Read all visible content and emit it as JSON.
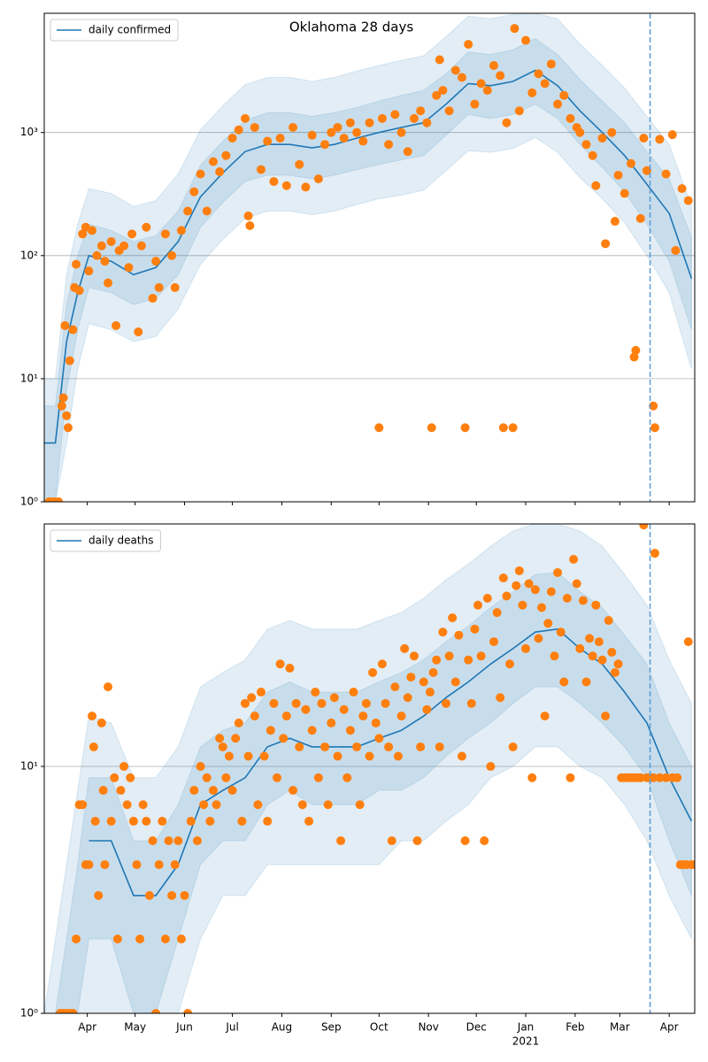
{
  "chart_data": [
    {
      "type": "line",
      "title": "Oklahoma 28 days",
      "log": true,
      "grid": true,
      "legend": "upper left",
      "x": [
        0,
        7,
        14,
        21,
        28,
        42,
        56,
        70,
        84,
        98,
        112,
        126,
        140,
        154,
        168,
        182,
        196,
        210,
        224,
        238,
        252,
        266,
        280,
        294,
        308,
        322,
        336,
        350,
        364,
        378,
        392,
        406
      ],
      "xlim": [
        0,
        408
      ],
      "ylim": [
        1,
        9300
      ],
      "yticks": [
        {
          "value": 1,
          "label": "10⁰"
        },
        {
          "value": 10,
          "label": "10¹"
        },
        {
          "value": 100,
          "label": "10²"
        },
        {
          "value": 1000,
          "label": "10³"
        }
      ],
      "series": [
        {
          "name": "daily confirmed",
          "color": "#1f77b4",
          "values": [
            3,
            3,
            20,
            50,
            100,
            90,
            70,
            80,
            130,
            300,
            470,
            700,
            800,
            800,
            750,
            800,
            900,
            1000,
            1100,
            1200,
            1700,
            2500,
            2400,
            2600,
            3200,
            2400,
            1500,
            1000,
            650,
            380,
            220,
            65
          ]
        }
      ],
      "bands": [
        {
          "lower": [
            1,
            1,
            3,
            12,
            28,
            25,
            20,
            22,
            37,
            85,
            135,
            200,
            230,
            230,
            215,
            230,
            260,
            290,
            310,
            340,
            490,
            710,
            690,
            740,
            910,
            690,
            430,
            290,
            185,
            100,
            50,
            12
          ],
          "upper": [
            10,
            10,
            70,
            180,
            350,
            320,
            250,
            280,
            460,
            1050,
            1650,
            2450,
            2800,
            2800,
            2600,
            2800,
            3150,
            3500,
            3850,
            4200,
            6000,
            8800,
            8400,
            9100,
            9300,
            8400,
            5250,
            3500,
            2300,
            1350,
            800,
            250
          ]
        },
        {
          "lower": [
            1,
            1,
            8,
            25,
            55,
            50,
            40,
            45,
            70,
            170,
            270,
            400,
            450,
            450,
            420,
            450,
            500,
            550,
            600,
            650,
            950,
            1400,
            1300,
            1400,
            1700,
            1300,
            800,
            520,
            330,
            180,
            90,
            25
          ],
          "upper": [
            6,
            6,
            40,
            100,
            180,
            160,
            130,
            145,
            230,
            540,
            850,
            1250,
            1450,
            1450,
            1350,
            1450,
            1600,
            1800,
            2000,
            2200,
            3000,
            4500,
            4300,
            4700,
            5800,
            4300,
            2700,
            1800,
            1200,
            700,
            420,
            140
          ]
        }
      ],
      "points": {
        "color": "#ff7f0e",
        "x": [
          3,
          5,
          7,
          9,
          11,
          12,
          13,
          14,
          15,
          16,
          18,
          19,
          20,
          22,
          24,
          26,
          28,
          30,
          33,
          36,
          38,
          40,
          42,
          45,
          47,
          50,
          53,
          55,
          59,
          61,
          64,
          68,
          70,
          72,
          76,
          80,
          82,
          86,
          90,
          94,
          98,
          102,
          106,
          110,
          114,
          118,
          122,
          126,
          128,
          129,
          132,
          136,
          140,
          144,
          148,
          152,
          156,
          160,
          164,
          168,
          172,
          176,
          180,
          184,
          188,
          192,
          196,
          200,
          204,
          210,
          212,
          216,
          220,
          224,
          228,
          232,
          236,
          240,
          243,
          246,
          248,
          250,
          254,
          258,
          262,
          264,
          266,
          270,
          274,
          278,
          282,
          286,
          288,
          290,
          294,
          295,
          298,
          302,
          306,
          310,
          314,
          318,
          322,
          326,
          330,
          334,
          336,
          340,
          344,
          346,
          350,
          352,
          356,
          358,
          360,
          364,
          368,
          370,
          371,
          374,
          376,
          378,
          382,
          383,
          386,
          390,
          394,
          396,
          400,
          404
        ],
        "values": [
          1,
          1,
          1,
          1,
          6,
          7,
          27,
          5,
          4,
          14,
          25,
          55,
          85,
          52,
          150,
          170,
          75,
          160,
          100,
          120,
          90,
          60,
          130,
          27,
          110,
          120,
          80,
          150,
          24,
          120,
          170,
          45,
          90,
          55,
          150,
          100,
          55,
          160,
          230,
          330,
          460,
          230,
          580,
          480,
          650,
          900,
          1050,
          1300,
          210,
          175,
          1100,
          500,
          850,
          400,
          900,
          370,
          1100,
          550,
          360,
          950,
          420,
          800,
          1000,
          1100,
          900,
          1200,
          1000,
          850,
          1200,
          4,
          1300,
          800,
          1400,
          1000,
          700,
          1300,
          1500,
          1200,
          4,
          2000,
          3900,
          2200,
          1500,
          3200,
          2800,
          4,
          5200,
          1700,
          2500,
          2200,
          3500,
          2900,
          4,
          1200,
          4,
          7000,
          1500,
          5600,
          2100,
          3000,
          2500,
          3600,
          1700,
          2000,
          1300,
          1100,
          1000,
          800,
          650,
          370,
          900,
          125,
          1000,
          190,
          450,
          320,
          560,
          15,
          17,
          200,
          900,
          490,
          6,
          4,
          880,
          460,
          960,
          110,
          350,
          280
        ]
      },
      "vline": {
        "x": 380,
        "color": "#5b9bd5"
      }
    },
    {
      "type": "line",
      "log": true,
      "grid": true,
      "legend": "upper left",
      "x": [
        0,
        7,
        14,
        21,
        28,
        42,
        56,
        70,
        84,
        98,
        112,
        126,
        140,
        154,
        168,
        182,
        196,
        210,
        224,
        238,
        252,
        266,
        280,
        294,
        308,
        322,
        336,
        350,
        364,
        378,
        392,
        406
      ],
      "xlim": [
        0,
        408
      ],
      "ylim": [
        1,
        96
      ],
      "xticks": [
        {
          "value": 27,
          "label": "Apr"
        },
        {
          "value": 57,
          "label": "May"
        },
        {
          "value": 88,
          "label": "Jun"
        },
        {
          "value": 118,
          "label": "Jul"
        },
        {
          "value": 149,
          "label": "Aug"
        },
        {
          "value": 180,
          "label": "Sep"
        },
        {
          "value": 210,
          "label": "Oct"
        },
        {
          "value": 241,
          "label": "Nov"
        },
        {
          "value": 271,
          "label": "Dec"
        },
        {
          "value": 302,
          "label": "Jan"
        },
        {
          "value": 333,
          "label": "Feb"
        },
        {
          "value": 361,
          "label": "Mar"
        },
        {
          "value": 392,
          "label": "Apr"
        }
      ],
      "x_year_label": {
        "value": 302,
        "label": "2021"
      },
      "yticks": [
        {
          "value": 1,
          "label": "10⁰"
        },
        {
          "value": 10,
          "label": "10¹"
        }
      ],
      "series": [
        {
          "name": "daily deaths",
          "color": "#1f77b4",
          "values": [
            null,
            null,
            null,
            null,
            5,
            5,
            3,
            3,
            4,
            7,
            8,
            9,
            12,
            13,
            12,
            12,
            12,
            13,
            14,
            16,
            19,
            22,
            26,
            30,
            35,
            36,
            30,
            26,
            20,
            15,
            9,
            6
          ]
        }
      ],
      "bands": [
        {
          "lower": [
            1,
            1,
            1,
            1,
            1,
            1,
            1,
            1,
            1,
            2,
            3,
            3,
            4,
            4,
            4,
            4,
            4,
            4,
            5,
            5,
            6,
            7,
            9,
            10,
            12,
            12,
            10,
            9,
            7,
            5,
            3,
            2
          ],
          "upper": [
            1,
            2,
            4,
            8,
            16,
            15,
            9,
            9,
            12,
            21,
            24,
            27,
            36,
            39,
            36,
            36,
            36,
            39,
            42,
            48,
            57,
            66,
            78,
            90,
            96,
            96,
            90,
            78,
            60,
            45,
            27,
            18
          ]
        },
        {
          "lower": [
            1,
            1,
            1,
            1,
            2,
            2,
            1,
            1,
            2,
            4,
            5,
            5,
            7,
            8,
            7,
            7,
            7,
            8,
            8,
            9,
            11,
            13,
            15,
            18,
            21,
            21,
            18,
            15,
            12,
            9,
            5,
            3
          ],
          "upper": [
            1,
            1,
            2,
            4,
            9,
            9,
            5,
            5,
            7,
            12,
            14,
            15,
            20,
            22,
            20,
            20,
            20,
            22,
            24,
            27,
            32,
            37,
            44,
            51,
            60,
            61,
            51,
            44,
            34,
            26,
            15,
            10
          ]
        }
      ],
      "points": {
        "color": "#ff7f0e",
        "x": [
          10,
          12,
          14,
          16,
          18,
          20,
          22,
          24,
          26,
          28,
          30,
          31,
          32,
          34,
          36,
          37,
          38,
          40,
          42,
          44,
          46,
          48,
          50,
          52,
          54,
          56,
          58,
          60,
          62,
          64,
          66,
          68,
          70,
          72,
          74,
          76,
          78,
          80,
          82,
          84,
          86,
          88,
          90,
          92,
          94,
          96,
          98,
          100,
          102,
          104,
          106,
          108,
          110,
          112,
          114,
          116,
          118,
          120,
          122,
          124,
          126,
          128,
          130,
          132,
          134,
          136,
          138,
          140,
          142,
          144,
          146,
          148,
          150,
          152,
          154,
          156,
          158,
          160,
          162,
          164,
          166,
          168,
          170,
          172,
          174,
          176,
          178,
          180,
          182,
          184,
          186,
          188,
          190,
          192,
          194,
          196,
          198,
          200,
          202,
          204,
          206,
          208,
          210,
          212,
          214,
          216,
          218,
          220,
          222,
          224,
          226,
          228,
          230,
          232,
          234,
          236,
          238,
          240,
          242,
          244,
          246,
          248,
          250,
          252,
          254,
          256,
          258,
          260,
          262,
          264,
          266,
          268,
          270,
          272,
          274,
          276,
          278,
          280,
          282,
          284,
          286,
          288,
          290,
          292,
          294,
          296,
          298,
          300,
          302,
          304,
          306,
          308,
          310,
          312,
          314,
          316,
          318,
          320,
          322,
          324,
          326,
          328,
          330,
          332,
          334,
          336,
          338,
          340,
          342,
          344,
          346,
          348,
          350,
          352,
          354,
          356,
          358,
          360,
          362,
          364,
          366,
          368,
          370,
          372,
          374,
          376,
          378,
          380,
          382,
          383,
          386,
          390,
          394,
          397,
          399,
          401,
          403,
          404,
          406,
          408
        ],
        "values": [
          1,
          1,
          1,
          1,
          1,
          2,
          7,
          7,
          4,
          4,
          16,
          12,
          6,
          3,
          15,
          8,
          4,
          21,
          6,
          9,
          2,
          8,
          10,
          7,
          9,
          6,
          4,
          2,
          7,
          6,
          3,
          5,
          1,
          4,
          6,
          2,
          5,
          3,
          4,
          5,
          2,
          3,
          1,
          6,
          8,
          5,
          10,
          7,
          9,
          6,
          8,
          7,
          13,
          12,
          9,
          11,
          8,
          13,
          15,
          6,
          18,
          11,
          19,
          16,
          7,
          20,
          11,
          6,
          14,
          18,
          9,
          26,
          13,
          16,
          25,
          8,
          18,
          12,
          7,
          17,
          6,
          14,
          20,
          9,
          18,
          12,
          7,
          15,
          19,
          11,
          5,
          17,
          9,
          14,
          20,
          12,
          7,
          16,
          18,
          11,
          24,
          15,
          13,
          26,
          18,
          12,
          5,
          21,
          11,
          16,
          30,
          19,
          23,
          28,
          5,
          12,
          22,
          17,
          20,
          24,
          27,
          12,
          35,
          18,
          28,
          40,
          22,
          34,
          11,
          5,
          27,
          18,
          36,
          45,
          28,
          5,
          48,
          10,
          32,
          42,
          19,
          58,
          49,
          26,
          12,
          54,
          62,
          45,
          30,
          55,
          9,
          52,
          33,
          44,
          16,
          38,
          51,
          28,
          61,
          35,
          22,
          48,
          9,
          69,
          55,
          30,
          47,
          22,
          33,
          28,
          45,
          32,
          27,
          16,
          39,
          29,
          24,
          26,
          9,
          9,
          9,
          9,
          9,
          9,
          9,
          95,
          9,
          9,
          9,
          73,
          9,
          9,
          9,
          9,
          4,
          4,
          4,
          32,
          4,
          4
        ]
      },
      "vline": {
        "x": 380,
        "color": "#5b9bd5"
      }
    }
  ]
}
